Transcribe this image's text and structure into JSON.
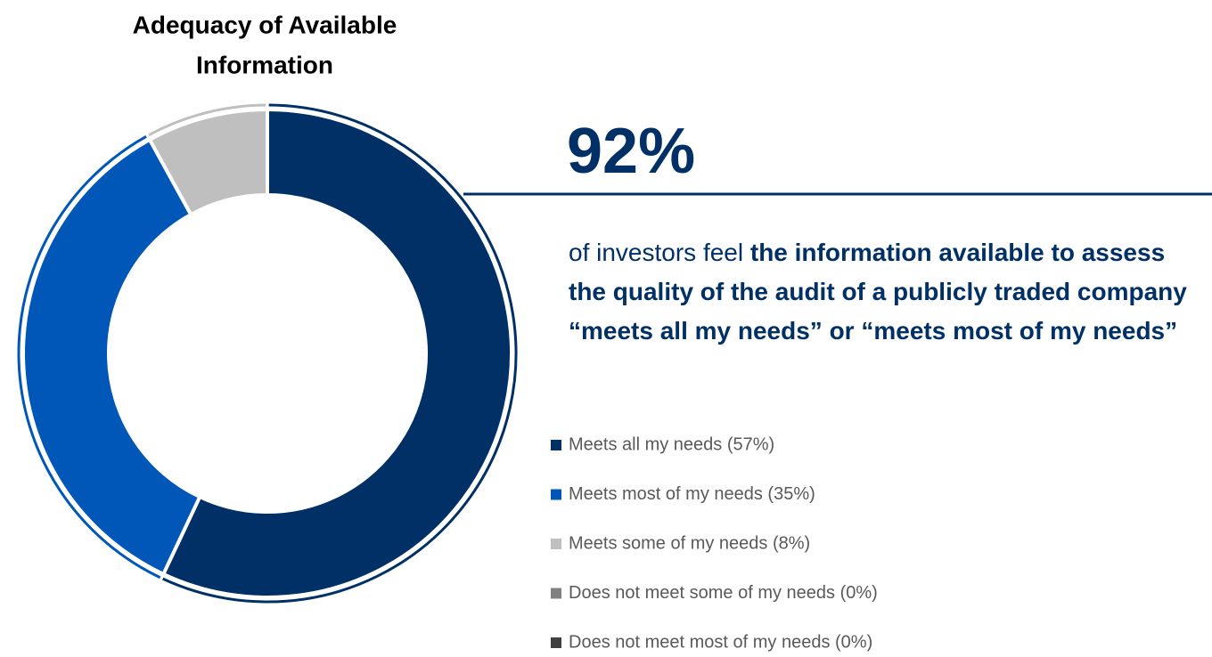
{
  "chart_data": {
    "type": "pie",
    "title": [
      "Adequacy of Available",
      "Information"
    ],
    "categories": [
      "Meets all my needs (57%)",
      "Meets most of my needs (35%)",
      "Meets some of my needs (8%)",
      "Does not meet some of my needs (0%)",
      "Does not meet most of my needs (0%)"
    ],
    "values": [
      57,
      35,
      8,
      0,
      0
    ],
    "colors": [
      "#003066",
      "#0057b8",
      "#bfbfbf",
      "#808080",
      "#404040"
    ],
    "annotation": {
      "headline": "92%",
      "text": [
        "of investors feel ",
        "the information available to assess the quality of the audit of a publicly traded company “meets all my needs” or “meets most of my needs”"
      ]
    }
  }
}
